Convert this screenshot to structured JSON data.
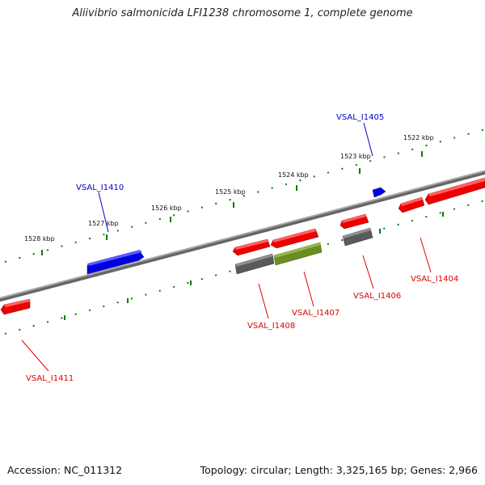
{
  "title": "Aliivibrio salmonicida LFI1238 chromosome 1, complete genome",
  "footer": {
    "accession": "Accession: NC_011312",
    "summary": "Topology: circular; Length: 3,325,165 bp; Genes: 2,966"
  },
  "scale_labels": [
    "1528 kbp",
    "1527 kbp",
    "1526 kbp",
    "1525 kbp",
    "1524 kbp",
    "1523 kbp",
    "1522 kbp"
  ],
  "gene_labels": [
    "VSAL_I1410",
    "VSAL_I1405",
    "VSAL_I1411",
    "VSAL_I1408",
    "VSAL_I1407",
    "VSAL_I1406",
    "VSAL_I1404"
  ],
  "colors": {
    "backbone": "#808080",
    "tick": "#0a7a0a",
    "forward_label": "#0000cc",
    "reverse_label": "#dd0000",
    "red_gene": "#ee0000",
    "blue_gene": "#0000ee",
    "gray_gene": "#606060",
    "olive_gene": "#6b8e23"
  }
}
